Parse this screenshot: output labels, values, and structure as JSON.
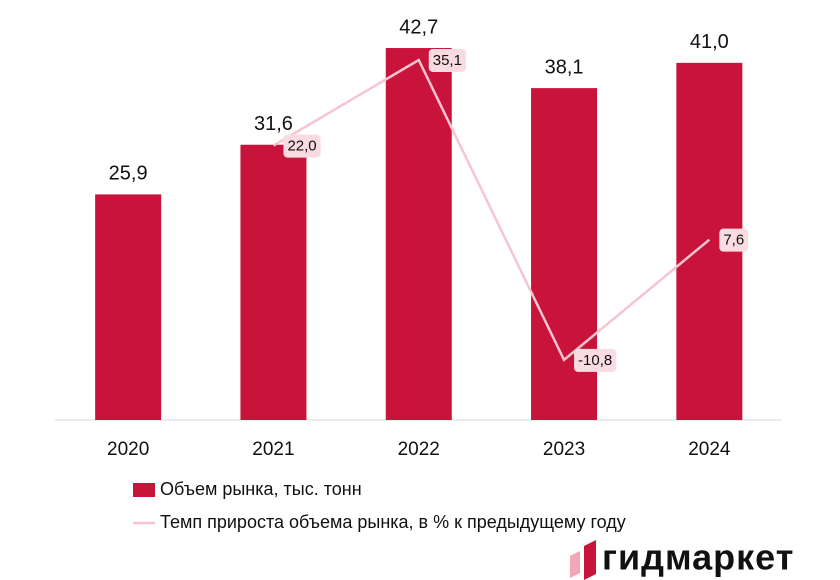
{
  "chart_data": {
    "type": "bar",
    "categories": [
      "2020",
      "2021",
      "2022",
      "2023",
      "2024"
    ],
    "ylim": [
      0,
      45
    ],
    "y2lim": [
      -20,
      40
    ],
    "series": [
      {
        "name": "Объем рынка, тыс. тонн",
        "type": "bar",
        "color": "#c8133b",
        "values": [
          25.9,
          31.6,
          42.7,
          38.1,
          41.0
        ],
        "value_labels": [
          "25,9",
          "31,6",
          "42,7",
          "38,1",
          "41,0"
        ]
      },
      {
        "name": "Темп прироста объема рынка, в % к предыдущему году",
        "type": "line",
        "axis": "y2",
        "color": "#f6c5d0",
        "values": [
          null,
          22.0,
          35.1,
          -10.8,
          7.6
        ],
        "value_labels": [
          null,
          "22,0",
          "35,1",
          "-10,8",
          "7,6"
        ]
      }
    ],
    "brand": "гидмаркет"
  }
}
